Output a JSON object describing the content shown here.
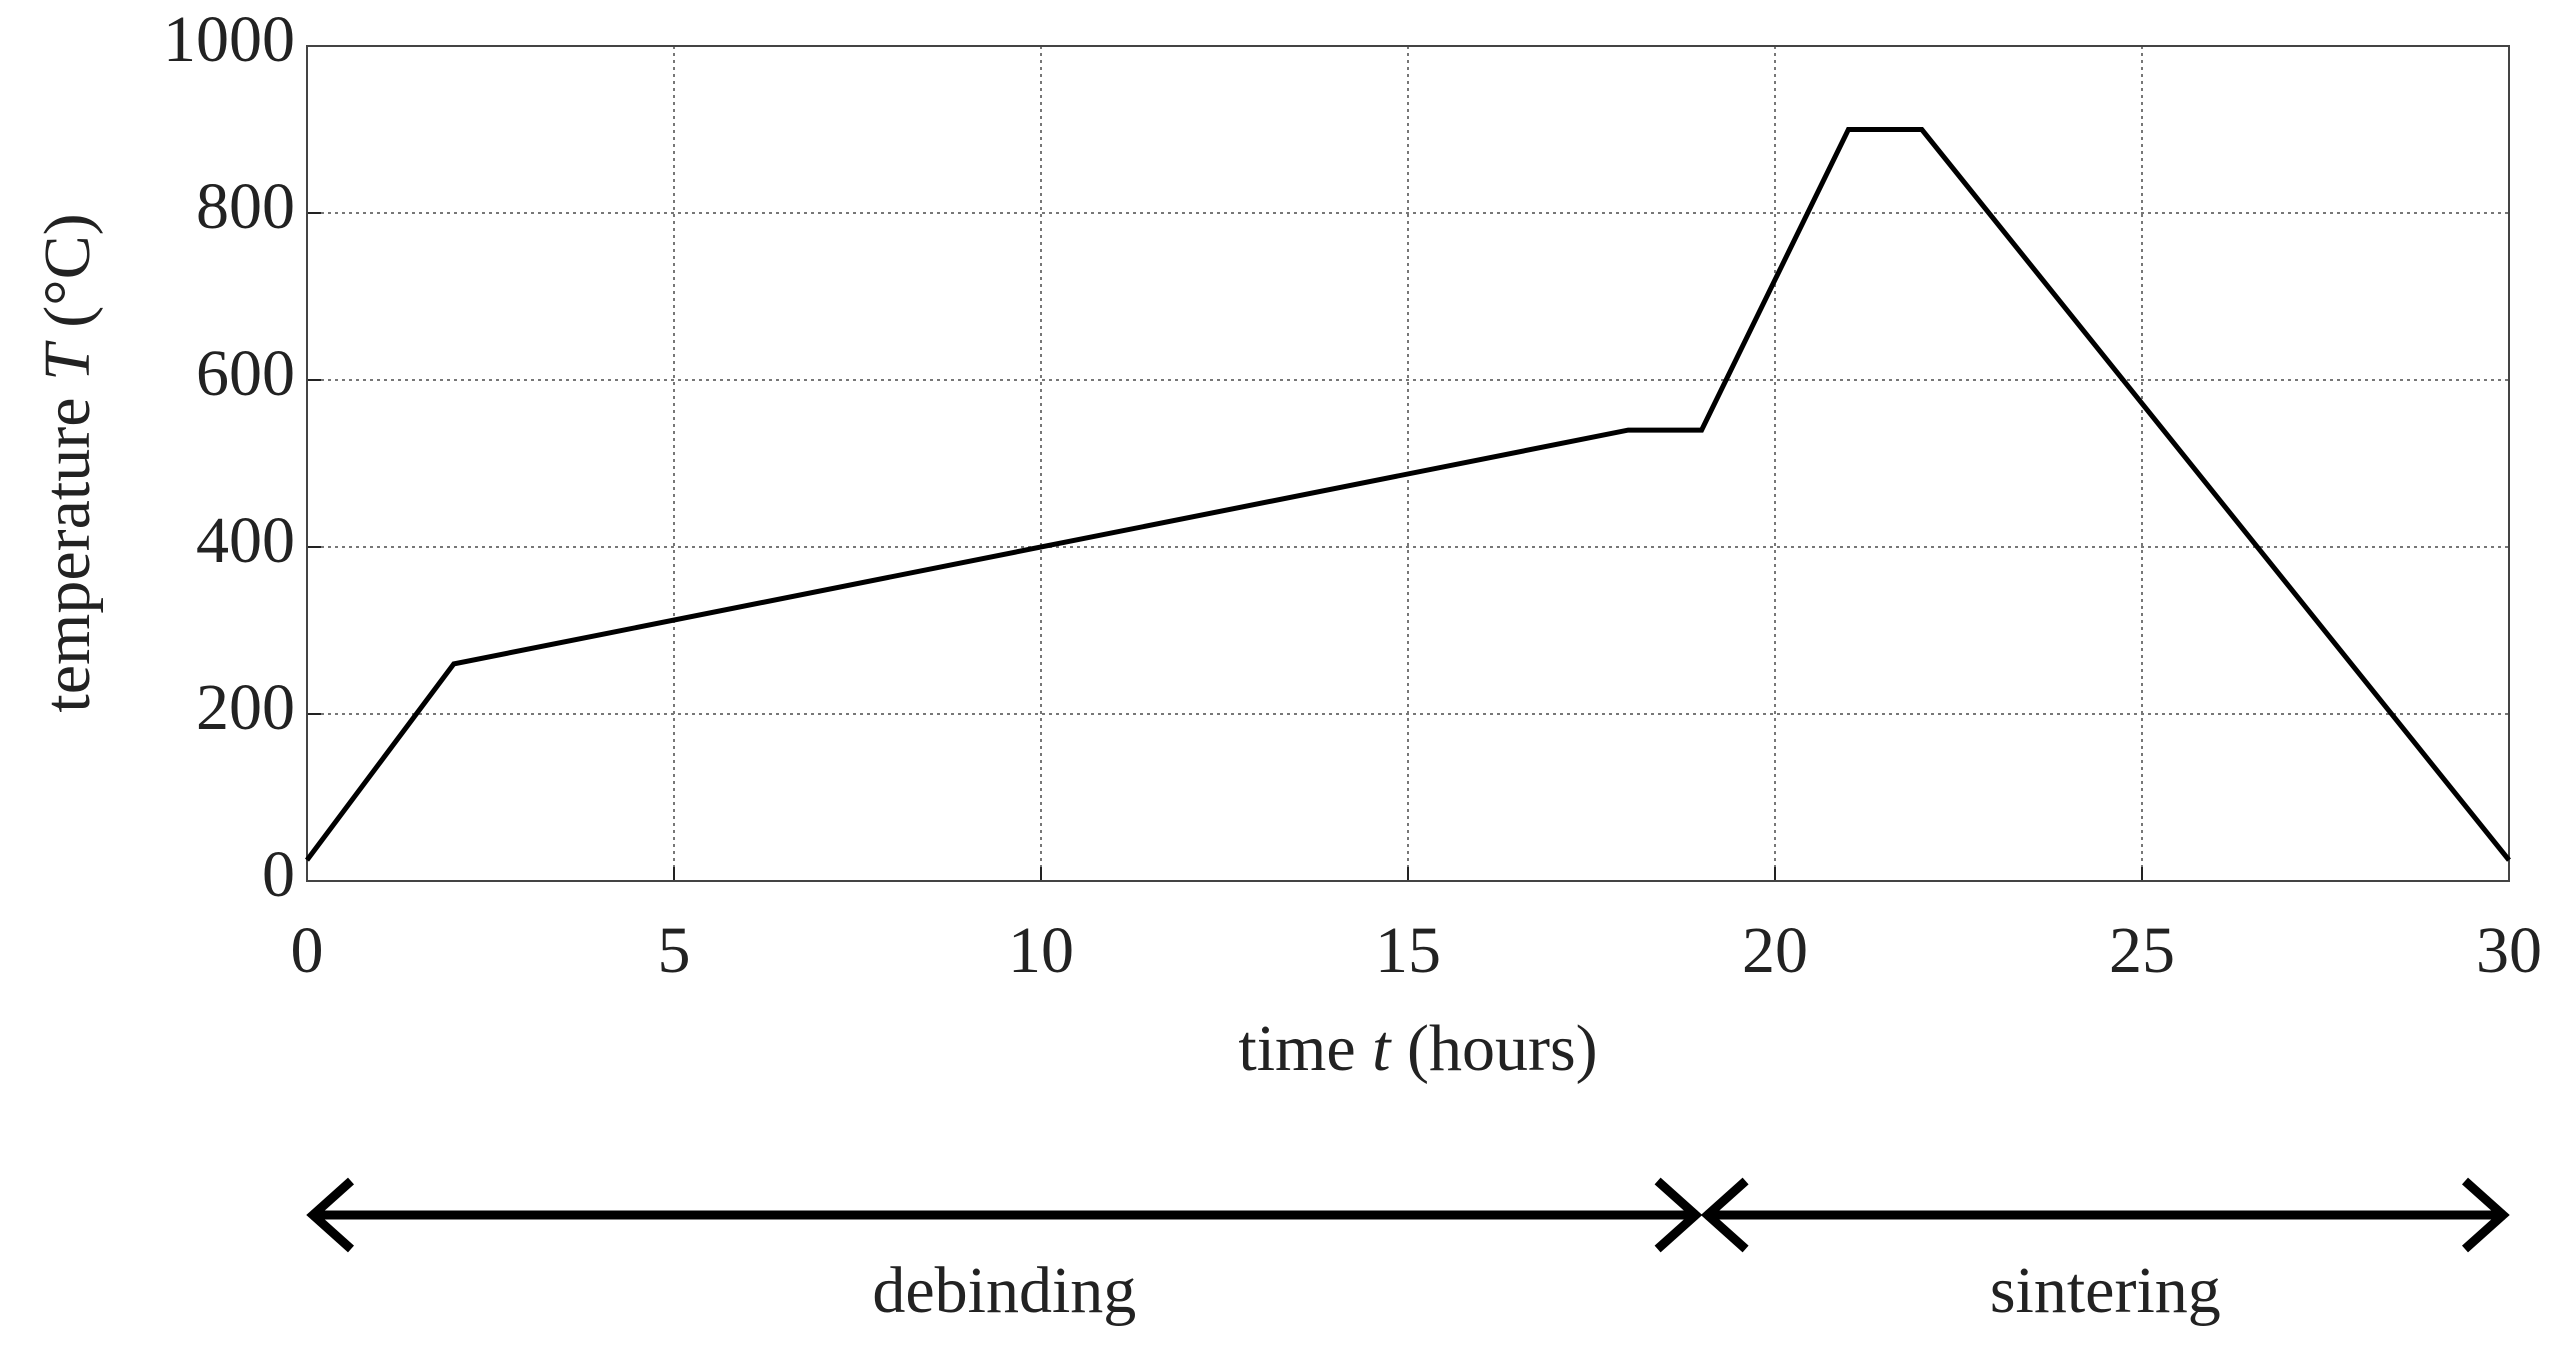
{
  "chart_data": {
    "type": "line",
    "ylabel": [
      "temperature ",
      "T",
      " (°C)"
    ],
    "xlabel": [
      "time ",
      "t",
      " (hours)"
    ],
    "x": [
      0,
      2,
      18,
      19,
      21,
      22,
      30
    ],
    "series": [
      {
        "color": "#000000",
        "values": [
          25,
          260,
          540,
          540,
          900,
          900,
          25
        ]
      }
    ],
    "xlim": [
      0,
      30
    ],
    "xticks": [
      0,
      5,
      10,
      15,
      20,
      25,
      30
    ],
    "ylim": [
      0,
      1000
    ],
    "yticks": [
      0,
      200,
      400,
      600,
      800,
      1000
    ],
    "grid": true,
    "annotations": [
      {
        "text": "debinding",
        "from": 0,
        "to": 19
      },
      {
        "text": "sintering",
        "from": 19,
        "to": 30
      }
    ]
  }
}
